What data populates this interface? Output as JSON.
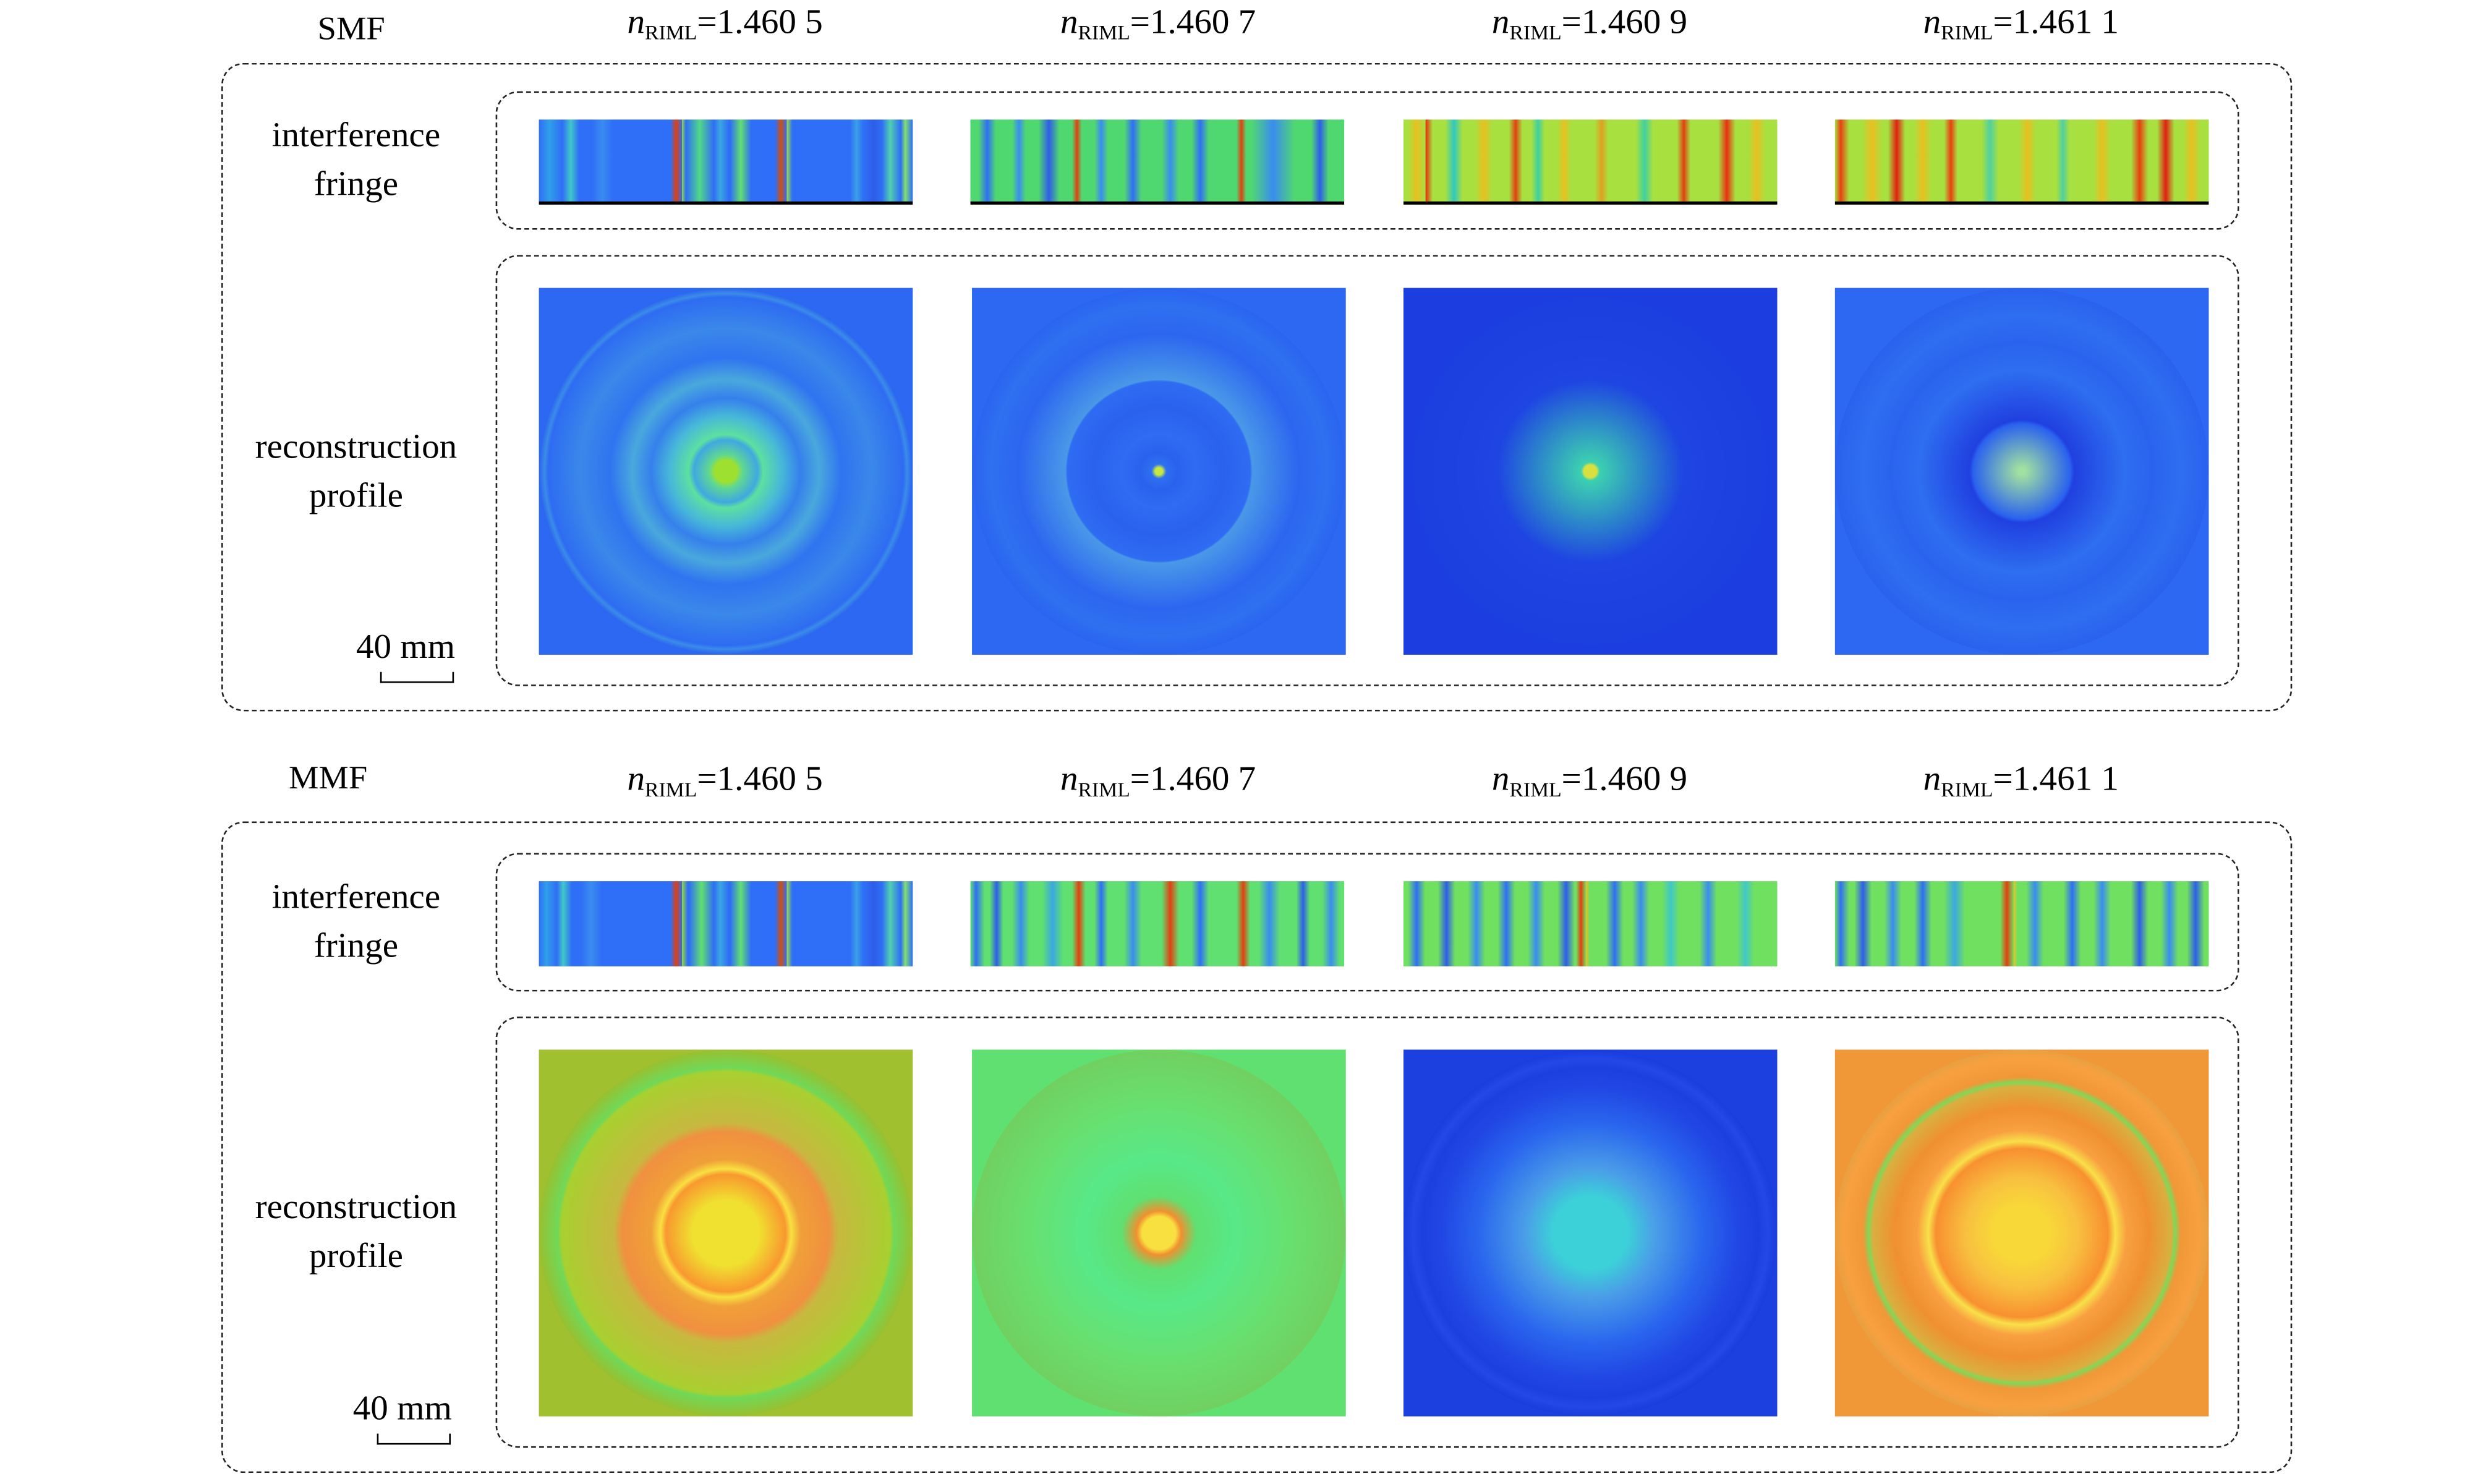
{
  "panels": [
    {
      "label": "SMF",
      "row_labels": {
        "interference": [
          "interference",
          "fringe"
        ],
        "reconstruction": [
          "reconstruction",
          "profile"
        ]
      },
      "scale_bar": "40 mm",
      "columns": [
        {
          "n_symbol": "n",
          "n_subscript": "RIML",
          "n_value": "=1.460 5",
          "fringe": {
            "base": "#2f6ef6",
            "stripes": [
              [
                0.0,
                0.055,
                "#2fa0e8"
              ],
              [
                0.07,
                0.1,
                "#40c8c8"
              ],
              [
                0.15,
                0.19,
                "#3a8cf0"
              ],
              [
                0.36,
                0.375,
                "#e04010"
              ],
              [
                0.375,
                0.385,
                "#8fdc30"
              ],
              [
                0.4,
                0.46,
                "#50d888"
              ],
              [
                0.47,
                0.5,
                "#3aa8e0"
              ],
              [
                0.52,
                0.56,
                "#60e070"
              ],
              [
                0.64,
                0.655,
                "#d05010"
              ],
              [
                0.655,
                0.67,
                "#a0e040"
              ],
              [
                0.84,
                0.86,
                "#3aa0e8"
              ],
              [
                0.88,
                0.91,
                "#2e5de8"
              ],
              [
                0.92,
                0.96,
                "#4fd0b0"
              ],
              [
                0.96,
                1.0,
                "#80e070"
              ]
            ]
          },
          "profile": {
            "bg": "#2c68f2",
            "rings": [
              [
                1.0,
                "#2a64f0"
              ],
              [
                0.97,
                "#3a8ce8"
              ],
              [
                0.95,
                "#2e6cf2"
              ],
              [
                0.78,
                "#3a88ea"
              ],
              [
                0.62,
                "#2f74f0"
              ],
              [
                0.5,
                "#4aa8dc"
              ],
              [
                0.4,
                "#3580ec"
              ],
              [
                0.3,
                "#48b8d8"
              ],
              [
                0.2,
                "#5ce0a0"
              ],
              [
                0.17,
                "#40a8e0"
              ],
              [
                0.09,
                "#60d890"
              ],
              [
                0.06,
                "#9ee030"
              ]
            ]
          }
        },
        {
          "n_symbol": "n",
          "n_subscript": "RIML",
          "n_value": "=1.460 7",
          "fringe": {
            "base": "#50d870",
            "stripes": [
              [
                0.03,
                0.06,
                "#2f6ef6"
              ],
              [
                0.12,
                0.14,
                "#3a8cf0"
              ],
              [
                0.19,
                0.23,
                "#2e5de8"
              ],
              [
                0.28,
                0.29,
                "#e04010"
              ],
              [
                0.34,
                0.36,
                "#3a8cf0"
              ],
              [
                0.42,
                0.45,
                "#2f6ef6"
              ],
              [
                0.52,
                0.55,
                "#3a8cf0"
              ],
              [
                0.6,
                0.63,
                "#2f6ef6"
              ],
              [
                0.72,
                0.73,
                "#e04010"
              ],
              [
                0.76,
                0.86,
                "#3a8cf0"
              ],
              [
                0.92,
                0.95,
                "#2e5de8"
              ]
            ]
          },
          "profile": {
            "bg": "#2c68f2",
            "rings": [
              [
                1.0,
                "#2a64f0"
              ],
              [
                0.9,
                "#2e70f0"
              ],
              [
                0.75,
                "#2c66f0"
              ],
              [
                0.5,
                "#4a98e8"
              ],
              [
                0.49,
                "#2e6cf2"
              ],
              [
                0.35,
                "#2a62ee"
              ],
              [
                0.2,
                "#2e6cf2"
              ],
              [
                0.1,
                "#2a62ee"
              ],
              [
                0.04,
                "#2e70f0"
              ],
              [
                0.02,
                "#c8e840"
              ]
            ]
          }
        },
        {
          "n_symbol": "n",
          "n_subscript": "RIML",
          "n_value": "=1.460 9",
          "fringe": {
            "base": "#a8e040",
            "stripes": [
              [
                0.02,
                0.05,
                "#e8c020"
              ],
              [
                0.05,
                0.07,
                "#e83010"
              ],
              [
                0.12,
                0.15,
                "#30c8c0"
              ],
              [
                0.2,
                0.23,
                "#e8c020"
              ],
              [
                0.29,
                0.31,
                "#e04010"
              ],
              [
                0.35,
                0.37,
                "#40d0a0"
              ],
              [
                0.42,
                0.44,
                "#e8c020"
              ],
              [
                0.52,
                0.54,
                "#e0a020"
              ],
              [
                0.63,
                0.66,
                "#40d0a0"
              ],
              [
                0.74,
                0.76,
                "#e04010"
              ],
              [
                0.85,
                0.88,
                "#e83010"
              ],
              [
                0.93,
                0.96,
                "#e8c020"
              ]
            ]
          },
          "profile": {
            "bg": "#1c3ee0",
            "rings": [
              [
                1.0,
                "#1c3ee0"
              ],
              [
                0.5,
                "#1e44e2"
              ],
              [
                0.05,
                "#3cd0b0"
              ],
              [
                0.035,
                "#d8e040"
              ]
            ]
          }
        },
        {
          "n_symbol": "n",
          "n_subscript": "RIML",
          "n_value": "=1.461 1",
          "fringe": {
            "base": "#a8e040",
            "stripes": [
              [
                0.0,
                0.03,
                "#e84010"
              ],
              [
                0.08,
                0.12,
                "#e8c020"
              ],
              [
                0.15,
                0.18,
                "#e02010"
              ],
              [
                0.22,
                0.25,
                "#e8c020"
              ],
              [
                0.3,
                0.32,
                "#e84010"
              ],
              [
                0.4,
                0.43,
                "#50d0a0"
              ],
              [
                0.5,
                0.53,
                "#e8c020"
              ],
              [
                0.6,
                0.62,
                "#50d0a0"
              ],
              [
                0.7,
                0.73,
                "#e8c020"
              ],
              [
                0.8,
                0.83,
                "#e84010"
              ],
              [
                0.87,
                0.9,
                "#e02010"
              ],
              [
                0.94,
                0.97,
                "#e8c020"
              ]
            ]
          },
          "profile": {
            "bg": "#2c68f2",
            "rings": [
              [
                1.0,
                "#2a62ee"
              ],
              [
                0.85,
                "#2e6ef0"
              ],
              [
                0.7,
                "#2a64ee"
              ],
              [
                0.55,
                "#2e6ef0"
              ],
              [
                0.28,
                "#2040e0"
              ],
              [
                0.26,
                "#2a62ee"
              ],
              [
                0.02,
                "#a0e0a0"
              ]
            ]
          }
        }
      ]
    },
    {
      "label": "MMF",
      "row_labels": {
        "interference": [
          "interference",
          "fringe"
        ],
        "reconstruction": [
          "reconstruction",
          "profile"
        ]
      },
      "scale_bar": "40 mm",
      "columns": [
        {
          "n_symbol": "n",
          "n_subscript": "RIML",
          "n_value": "=1.460 5",
          "fringe": {
            "base": "#2f6ef6",
            "stripes": [
              [
                0.0,
                0.04,
                "#2fa0e8"
              ],
              [
                0.05,
                0.08,
                "#40c8c8"
              ],
              [
                0.12,
                0.16,
                "#3a8cf0"
              ],
              [
                0.36,
                0.375,
                "#e04010"
              ],
              [
                0.375,
                0.39,
                "#8fdc30"
              ],
              [
                0.41,
                0.46,
                "#60e070"
              ],
              [
                0.47,
                0.5,
                "#3aa8e0"
              ],
              [
                0.52,
                0.56,
                "#60e070"
              ],
              [
                0.64,
                0.655,
                "#d05010"
              ],
              [
                0.655,
                0.67,
                "#a0e040"
              ],
              [
                0.84,
                0.86,
                "#3aa0e8"
              ],
              [
                0.88,
                0.91,
                "#2e5de8"
              ],
              [
                0.92,
                0.96,
                "#4fd0b0"
              ],
              [
                0.96,
                1.0,
                "#80e070"
              ]
            ]
          },
          "profile": {
            "bg": "#a0c030",
            "rings": [
              [
                1.0,
                "#98c030"
              ],
              [
                0.9,
                "#70d858"
              ],
              [
                0.88,
                "#a8d030"
              ],
              [
                0.6,
                "#c8b840"
              ],
              [
                0.55,
                "#f09040"
              ],
              [
                0.4,
                "#f0a038"
              ],
              [
                0.35,
                "#f8e040"
              ],
              [
                0.32,
                "#f89830"
              ],
              [
                0.18,
                "#f0e030"
              ]
            ]
          }
        },
        {
          "n_symbol": "n",
          "n_subscript": "RIML",
          "n_value": "=1.460 7",
          "fringe": {
            "base": "#60e070",
            "stripes": [
              [
                0.0,
                0.03,
                "#2f6ef6"
              ],
              [
                0.06,
                0.08,
                "#2e5de8"
              ],
              [
                0.12,
                0.15,
                "#3a8cf0"
              ],
              [
                0.2,
                0.24,
                "#3aa8e0"
              ],
              [
                0.28,
                0.3,
                "#e04010"
              ],
              [
                0.34,
                0.36,
                "#2f6ef6"
              ],
              [
                0.42,
                0.45,
                "#3a8cf0"
              ],
              [
                0.52,
                0.55,
                "#e04010"
              ],
              [
                0.6,
                0.63,
                "#2f6ef6"
              ],
              [
                0.72,
                0.74,
                "#e04010"
              ],
              [
                0.78,
                0.82,
                "#3a8cf0"
              ],
              [
                0.88,
                0.9,
                "#2e5de8"
              ],
              [
                0.95,
                0.98,
                "#3a8cf0"
              ]
            ]
          },
          "profile": {
            "bg": "#60e070",
            "rings": [
              [
                1.0,
                "#70d060"
              ],
              [
                0.7,
                "#68e070"
              ],
              [
                0.4,
                "#58e888"
              ],
              [
                0.2,
                "#60e070"
              ],
              [
                0.12,
                "#f09030"
              ],
              [
                0.09,
                "#f8e040"
              ]
            ]
          }
        },
        {
          "n_symbol": "n",
          "n_subscript": "RIML",
          "n_value": "=1.460 9",
          "fringe": {
            "base": "#70e060",
            "stripes": [
              [
                0.02,
                0.05,
                "#2f6ef6"
              ],
              [
                0.1,
                0.13,
                "#2e5de8"
              ],
              [
                0.18,
                0.21,
                "#3a8cf0"
              ],
              [
                0.26,
                0.29,
                "#2f6ef6"
              ],
              [
                0.34,
                0.37,
                "#3a8cf0"
              ],
              [
                0.42,
                0.45,
                "#2e5de8"
              ],
              [
                0.47,
                0.48,
                "#e04010"
              ],
              [
                0.48,
                0.49,
                "#f0c020"
              ],
              [
                0.55,
                0.58,
                "#2f6ef6"
              ],
              [
                0.62,
                0.65,
                "#3a8cf0"
              ],
              [
                0.7,
                0.73,
                "#40c8c8"
              ],
              [
                0.8,
                0.83,
                "#3a8cf0"
              ],
              [
                0.9,
                0.93,
                "#40c8c8"
              ]
            ]
          },
          "profile": {
            "bg": "#1c40e0",
            "rings": [
              [
                1.0,
                "#1a3cde"
              ],
              [
                0.95,
                "#2248e6"
              ],
              [
                0.9,
                "#1c40e0"
              ],
              [
                0.8,
                "#2046e4"
              ],
              [
                0.6,
                "#2a66ee"
              ],
              [
                0.35,
                "#4a9ee8"
              ],
              [
                0.2,
                "#3cd0d8"
              ]
            ]
          }
        },
        {
          "n_symbol": "n",
          "n_subscript": "RIML",
          "n_value": "=1.461 1",
          "fringe": {
            "base": "#70e060",
            "stripes": [
              [
                0.0,
                0.03,
                "#2f6ef6"
              ],
              [
                0.06,
                0.09,
                "#2e5de8"
              ],
              [
                0.14,
                0.17,
                "#3a8cf0"
              ],
              [
                0.22,
                0.25,
                "#2f6ef6"
              ],
              [
                0.3,
                0.34,
                "#3aa8e0"
              ],
              [
                0.45,
                0.47,
                "#e04010"
              ],
              [
                0.47,
                0.48,
                "#f0c020"
              ],
              [
                0.52,
                0.55,
                "#3a8cf0"
              ],
              [
                0.62,
                0.65,
                "#2f6ef6"
              ],
              [
                0.7,
                0.73,
                "#3a8cf0"
              ],
              [
                0.8,
                0.83,
                "#2e5de8"
              ],
              [
                0.88,
                0.91,
                "#3a8cf0"
              ],
              [
                0.95,
                0.98,
                "#2e5de8"
              ]
            ]
          },
          "profile": {
            "bg": "#f09838",
            "rings": [
              [
                1.0,
                "#e8a040"
              ],
              [
                0.95,
                "#f8a040"
              ],
              [
                0.85,
                "#f09838"
              ],
              [
                0.82,
                "#80d858"
              ],
              [
                0.8,
                "#d8b040"
              ],
              [
                0.68,
                "#f09030"
              ],
              [
                0.56,
                "#f8a040"
              ],
              [
                0.5,
                "#f8e048"
              ],
              [
                0.46,
                "#f89030"
              ],
              [
                0.3,
                "#f8c040"
              ],
              [
                0.15,
                "#f8d838"
              ]
            ]
          }
        }
      ]
    }
  ]
}
